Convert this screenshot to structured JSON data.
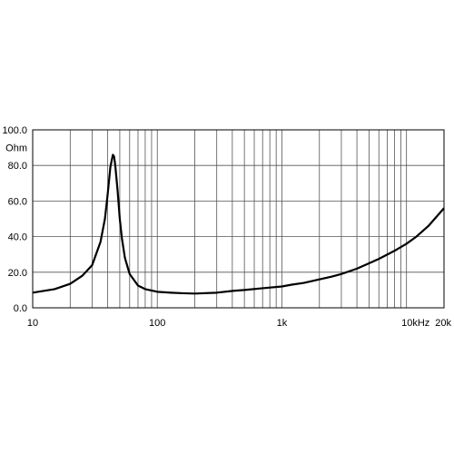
{
  "chart_data": {
    "type": "line",
    "title": "",
    "xlabel": "",
    "ylabel": "Ohm",
    "x_scale": "log",
    "xlim": [
      10,
      20000
    ],
    "ylim": [
      0,
      100
    ],
    "grid": true,
    "x_tick_labels": [
      {
        "value": 10,
        "label": "10"
      },
      {
        "value": 100,
        "label": "100"
      },
      {
        "value": 1000,
        "label": "1k"
      },
      {
        "value": 10000,
        "label": "10kHz"
      },
      {
        "value": 20000,
        "label": "20k"
      }
    ],
    "y_tick_labels": [
      {
        "value": 0,
        "label": "0.0"
      },
      {
        "value": 20,
        "label": "20.0"
      },
      {
        "value": 40,
        "label": "40.0"
      },
      {
        "value": 60,
        "label": "60.0"
      },
      {
        "value": 80,
        "label": "80.0"
      },
      {
        "value": 100,
        "label": "100.0"
      }
    ],
    "series": [
      {
        "color": "#000000",
        "x": [
          10,
          15,
          20,
          25,
          30,
          35,
          38,
          40,
          42,
          44,
          45,
          46,
          48,
          50,
          52,
          55,
          60,
          70,
          80,
          100,
          130,
          160,
          200,
          300,
          400,
          500,
          700,
          1000,
          1200,
          1500,
          2000,
          2500,
          3000,
          4000,
          5000,
          6000,
          8000,
          10000,
          12000,
          15000,
          20000
        ],
        "y": [
          8.5,
          10.5,
          13.5,
          18,
          24,
          37,
          50,
          64,
          79,
          86,
          85,
          80,
          66,
          50,
          39,
          28,
          19,
          12.5,
          10.5,
          9,
          8.5,
          8.2,
          8,
          8.5,
          9.5,
          10,
          11,
          12,
          13,
          14,
          16,
          17.5,
          19,
          22,
          25,
          27.5,
          32,
          36,
          40,
          46,
          56
        ]
      }
    ]
  }
}
